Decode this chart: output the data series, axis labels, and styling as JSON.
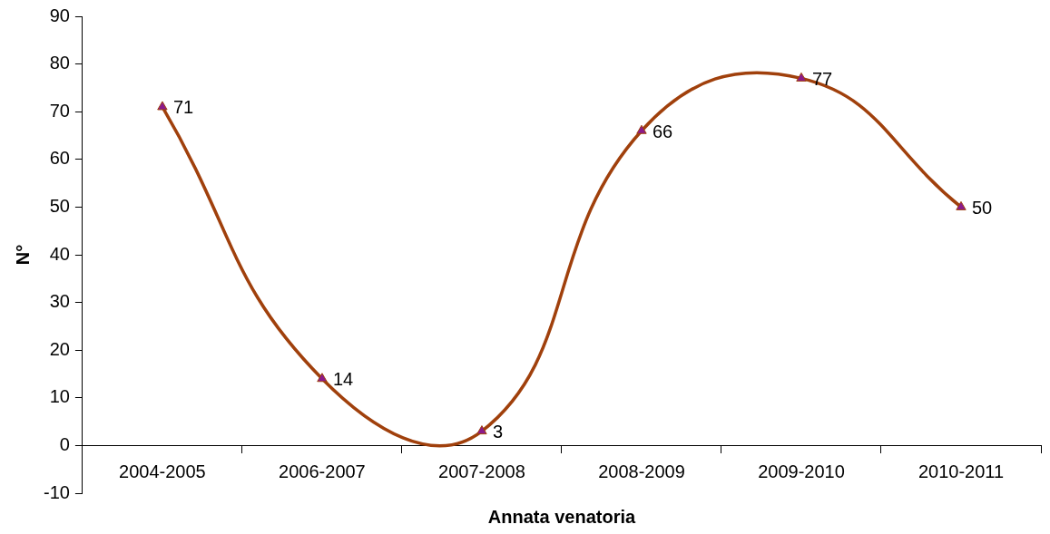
{
  "chart_data": {
    "type": "line",
    "xlabel": "Annata venatoria",
    "ylabel": "N°",
    "categories": [
      "2004-2005",
      "2006-2007",
      "2007-2008",
      "2008-2009",
      "2009-2010",
      "2010-2011"
    ],
    "series": [
      {
        "color": "#a0400c",
        "colors": [
          "#8b1a8b",
          "#8b1a8b",
          "#8b1a8b",
          "#8b1a8b",
          "#8b1a8b",
          "#8b1a8b"
        ],
        "values": [
          71,
          14,
          3,
          66,
          77,
          50
        ]
      }
    ],
    "ylim": [
      -10,
      90
    ],
    "yticks": [
      -10,
      0,
      10,
      20,
      30,
      40,
      50,
      60,
      70,
      80,
      90
    ],
    "grid": false,
    "legend": false,
    "marker": "triangle",
    "line_style": "solid",
    "data_labels": true
  }
}
